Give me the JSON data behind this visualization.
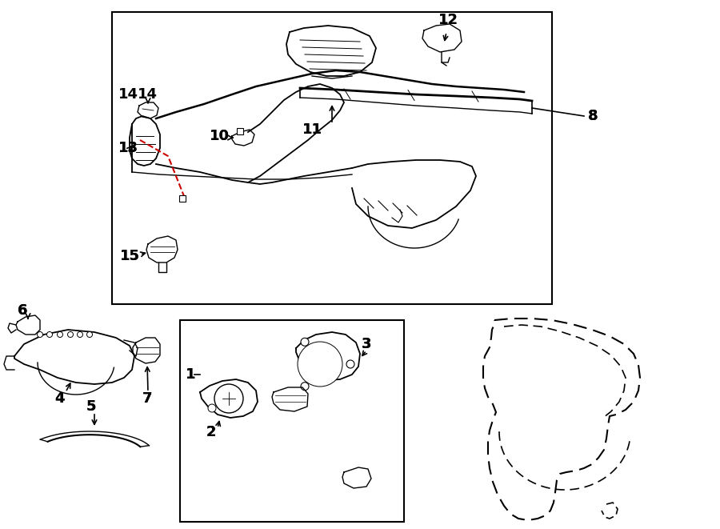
{
  "bg_color": "#ffffff",
  "lc": "#000000",
  "rc": "#cc0000",
  "fig_w": 9.0,
  "fig_h": 6.61,
  "dpi": 100
}
